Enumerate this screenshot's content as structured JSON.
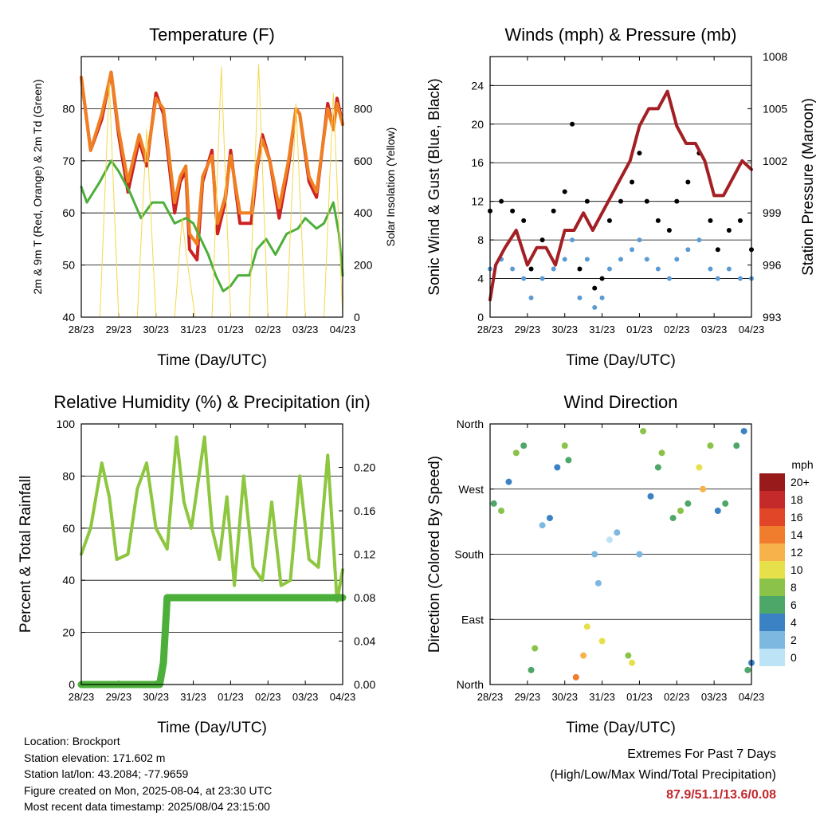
{
  "footer": {
    "location": "Location: Brockport",
    "elevation": "Station elevation: 171.602 m",
    "latlon": "Station lat/lon: 43.2084; -77.9659",
    "created": "Figure created on Mon, 2025-08-04, at 23:30 UTC",
    "recent": "Most recent data timestamp: 2025/08/04 23:15:00",
    "extremes_title": "Extremes For Past 7 Days",
    "extremes_sub": "(High/Low/Max Wind/Total Precipitation)",
    "extremes_values": "87.9/51.1/13.6/0.08",
    "extremes_color": "#c0272d"
  },
  "chart_data": [
    {
      "type": "line",
      "title": "Temperature (F)",
      "xlabel": "Time (Day/UTC)",
      "ylabel": "2m & 9m T (Red, Orange) & 2m Td (Green)",
      "y2label": "Solar Insolation (Yellow)",
      "x_ticks": [
        "28/23",
        "29/23",
        "30/23",
        "31/23",
        "01/23",
        "02/23",
        "03/23",
        "04/23"
      ],
      "xlim": [
        0,
        7
      ],
      "ylim": [
        40,
        90
      ],
      "y_ticks": [
        40,
        50,
        60,
        70,
        80
      ],
      "y2lim": [
        0,
        1000
      ],
      "y2_ticks": [
        0,
        200,
        400,
        600,
        800
      ],
      "grid": true,
      "series": [
        {
          "name": "2m T",
          "color": "#cc2222",
          "x": [
            0,
            0.25,
            0.55,
            0.8,
            1.0,
            1.25,
            1.55,
            1.75,
            2.0,
            2.2,
            2.5,
            2.65,
            2.8,
            2.9,
            3.1,
            3.25,
            3.5,
            3.65,
            3.85,
            4.0,
            4.25,
            4.55,
            4.7,
            4.85,
            5.05,
            5.3,
            5.55,
            5.75,
            5.85,
            6.1,
            6.3,
            6.6,
            6.75,
            6.85,
            7.0
          ],
          "y": [
            86,
            72,
            78,
            87,
            75,
            64,
            74,
            69,
            83,
            79,
            60,
            66,
            68,
            53,
            51,
            66,
            72,
            56,
            62,
            72,
            58,
            58,
            68,
            75,
            70,
            59,
            69,
            80,
            79,
            66,
            63,
            81,
            76,
            82,
            77
          ]
        },
        {
          "name": "9m T",
          "color": "#f07f22",
          "x": [
            0,
            0.25,
            0.55,
            0.8,
            1.0,
            1.25,
            1.55,
            1.75,
            2.0,
            2.2,
            2.5,
            2.65,
            2.8,
            2.9,
            3.1,
            3.25,
            3.5,
            3.65,
            3.85,
            4.0,
            4.25,
            4.55,
            4.7,
            4.85,
            5.05,
            5.3,
            5.55,
            5.75,
            5.85,
            6.1,
            6.3,
            6.6,
            6.75,
            6.85,
            7.0
          ],
          "y": [
            86,
            72,
            79,
            87,
            76,
            66,
            75,
            70,
            82,
            80,
            62,
            67,
            69,
            56,
            54,
            67,
            71,
            58,
            63,
            71,
            60,
            60,
            69,
            74,
            70,
            61,
            70,
            80,
            79,
            67,
            64,
            80,
            76,
            81,
            77
          ]
        },
        {
          "name": "2m Td",
          "color": "#4caf3a",
          "x": [
            0,
            0.15,
            0.5,
            0.8,
            1.0,
            1.3,
            1.6,
            1.9,
            2.2,
            2.5,
            2.8,
            3.0,
            3.2,
            3.4,
            3.6,
            3.8,
            4.0,
            4.2,
            4.5,
            4.7,
            4.95,
            5.2,
            5.5,
            5.8,
            6.0,
            6.3,
            6.5,
            6.75,
            6.9,
            7.0
          ],
          "y": [
            65,
            62,
            66,
            70,
            68,
            64,
            59,
            62,
            62,
            58,
            59,
            58,
            55,
            52,
            48,
            45,
            46,
            48,
            48,
            53,
            55,
            52,
            56,
            57,
            59,
            57,
            58,
            62,
            56,
            48
          ]
        },
        {
          "name": "Solar",
          "color": "#f5d84a",
          "axis": "y2",
          "x": [
            0,
            0.5,
            0.75,
            1.0,
            1.5,
            1.75,
            2.0,
            2.5,
            2.7,
            2.85,
            3.05,
            3.5,
            3.75,
            4.0,
            4.5,
            4.75,
            5.0,
            5.5,
            5.75,
            6.0,
            6.5,
            6.75,
            7.0
          ],
          "y": [
            0,
            0,
            900,
            0,
            0,
            720,
            0,
            0,
            380,
            200,
            0,
            0,
            960,
            0,
            0,
            970,
            0,
            0,
            820,
            0,
            0,
            860,
            0
          ]
        }
      ]
    },
    {
      "type": "scatter",
      "title": "Winds (mph) & Pressure (mb)",
      "xlabel": "Time (Day/UTC)",
      "ylabel": "Sonic Wind & Gust (Blue, Black)",
      "y2label": "Station Pressure (Maroon)",
      "x_ticks": [
        "28/23",
        "29/23",
        "30/23",
        "31/23",
        "01/23",
        "02/23",
        "03/23",
        "04/23"
      ],
      "xlim": [
        0,
        7
      ],
      "ylim": [
        0,
        27
      ],
      "y_ticks": [
        0,
        4,
        8,
        12,
        16,
        20,
        24
      ],
      "y2lim": [
        993,
        1008
      ],
      "y2_ticks": [
        993,
        996,
        999,
        1002,
        1005,
        1008
      ],
      "grid": true,
      "series": [
        {
          "name": "Sonic Wind",
          "color": "#5b9bd5",
          "x": [
            0,
            0.3,
            0.6,
            0.9,
            1.1,
            1.4,
            1.7,
            2.0,
            2.2,
            2.4,
            2.6,
            2.8,
            3.0,
            3.2,
            3.5,
            3.8,
            4.0,
            4.2,
            4.5,
            4.8,
            5.0,
            5.3,
            5.6,
            5.9,
            6.1,
            6.4,
            6.7,
            7.0
          ],
          "y": [
            5,
            6,
            5,
            4,
            2,
            4,
            5,
            6,
            8,
            2,
            6,
            1,
            2,
            5,
            6,
            7,
            8,
            6,
            5,
            4,
            6,
            7,
            8,
            5,
            4,
            5,
            4,
            4
          ]
        },
        {
          "name": "Gust",
          "color": "#000000",
          "x": [
            0,
            0.3,
            0.6,
            0.9,
            1.1,
            1.4,
            1.7,
            2.0,
            2.2,
            2.4,
            2.6,
            2.8,
            3.0,
            3.2,
            3.5,
            3.8,
            4.0,
            4.2,
            4.5,
            4.8,
            5.0,
            5.3,
            5.6,
            5.9,
            6.1,
            6.4,
            6.7,
            7.0
          ],
          "y": [
            11,
            12,
            11,
            10,
            5,
            8,
            11,
            13,
            20,
            5,
            12,
            3,
            4,
            10,
            12,
            14,
            17,
            12,
            10,
            9,
            12,
            14,
            17,
            10,
            7,
            9,
            10,
            7
          ]
        },
        {
          "name": "Pressure",
          "color": "#a31f24",
          "axis": "y2",
          "x": [
            0,
            0.15,
            0.4,
            0.7,
            1.0,
            1.25,
            1.5,
            1.75,
            2.0,
            2.25,
            2.5,
            2.75,
            3.0,
            3.25,
            3.5,
            3.75,
            4.0,
            4.25,
            4.5,
            4.75,
            5.0,
            5.25,
            5.5,
            5.75,
            6.0,
            6.25,
            6.5,
            6.75,
            7.0
          ],
          "y": [
            994,
            996,
            997,
            998,
            996,
            997,
            997,
            996,
            998,
            998,
            999,
            998,
            999,
            1000,
            1001,
            1002,
            1004,
            1005,
            1005,
            1006,
            1004,
            1003,
            1003,
            1002,
            1000,
            1000,
            1001,
            1002,
            1001.5
          ]
        }
      ]
    },
    {
      "type": "line",
      "title": "Relative Humidity (%) & Precipitation (in)",
      "xlabel": "Time (Day/UTC)",
      "ylabel": "Percent & Total Rainfall",
      "x_ticks": [
        "28/23",
        "29/23",
        "30/23",
        "31/23",
        "01/23",
        "02/23",
        "03/23",
        "04/23"
      ],
      "xlim": [
        0,
        7
      ],
      "ylim": [
        0,
        100
      ],
      "y_ticks": [
        0,
        20,
        40,
        60,
        80,
        100
      ],
      "y2lim": [
        0,
        0.24
      ],
      "y2_ticks": [
        "0.00",
        "0.04",
        "0.08",
        "0.12",
        "0.16",
        "0.20"
      ],
      "grid": true,
      "series": [
        {
          "name": "RH",
          "color": "#8dc63f",
          "x": [
            0,
            0.25,
            0.55,
            0.75,
            0.95,
            1.25,
            1.5,
            1.75,
            2.0,
            2.3,
            2.55,
            2.75,
            2.95,
            3.3,
            3.5,
            3.7,
            3.9,
            4.1,
            4.35,
            4.6,
            4.85,
            5.1,
            5.35,
            5.6,
            5.85,
            6.1,
            6.35,
            6.6,
            6.85,
            7.0
          ],
          "y": [
            50,
            60,
            85,
            72,
            48,
            50,
            75,
            85,
            60,
            52,
            95,
            70,
            60,
            95,
            60,
            48,
            72,
            38,
            80,
            45,
            40,
            70,
            38,
            40,
            80,
            48,
            45,
            88,
            32,
            44
          ]
        },
        {
          "name": "Precip",
          "color": "#4caf3a",
          "axis": "y2",
          "x": [
            0,
            1.8,
            2.1,
            2.2,
            2.25,
            2.3,
            2.4,
            7.0
          ],
          "y": [
            0,
            0,
            0,
            0.02,
            0.05,
            0.08,
            0.08,
            0.08
          ]
        }
      ]
    },
    {
      "type": "scatter",
      "title": "Wind Direction",
      "xlabel": "Time (Day/UTC)",
      "ylabel": "Direction (Colored By Speed)",
      "x_ticks": [
        "28/23",
        "29/23",
        "30/23",
        "31/23",
        "01/23",
        "02/23",
        "03/23",
        "04/23"
      ],
      "xlim": [
        0,
        7
      ],
      "ylim": [
        0,
        360
      ],
      "y_ticks": [
        "North",
        "East",
        "South",
        "West",
        "North"
      ],
      "legend_title": "mph",
      "legend": [
        "0",
        "2",
        "4",
        "6",
        "8",
        "10",
        "12",
        "14",
        "16",
        "18",
        "20+"
      ],
      "legend_colors": [
        "#bde3f6",
        "#7db8e0",
        "#3b82c4",
        "#4da768",
        "#8bc34a",
        "#e6e04a",
        "#f7b24b",
        "#f07c2e",
        "#e04627",
        "#c42a2a",
        "#981a1a"
      ],
      "points": [
        {
          "x": 0.1,
          "y": 250,
          "s": 6
        },
        {
          "x": 0.3,
          "y": 240,
          "s": 8
        },
        {
          "x": 0.5,
          "y": 280,
          "s": 4
        },
        {
          "x": 0.7,
          "y": 320,
          "s": 8
        },
        {
          "x": 0.9,
          "y": 330,
          "s": 6
        },
        {
          "x": 1.1,
          "y": 20,
          "s": 6
        },
        {
          "x": 1.2,
          "y": 50,
          "s": 8
        },
        {
          "x": 1.4,
          "y": 220,
          "s": 2
        },
        {
          "x": 1.6,
          "y": 230,
          "s": 4
        },
        {
          "x": 1.8,
          "y": 300,
          "s": 4
        },
        {
          "x": 2.0,
          "y": 330,
          "s": 8
        },
        {
          "x": 2.1,
          "y": 310,
          "s": 6
        },
        {
          "x": 2.3,
          "y": 10,
          "s": 14
        },
        {
          "x": 2.5,
          "y": 40,
          "s": 12
        },
        {
          "x": 2.6,
          "y": 80,
          "s": 10
        },
        {
          "x": 2.8,
          "y": 180,
          "s": 2
        },
        {
          "x": 2.9,
          "y": 140,
          "s": 2
        },
        {
          "x": 3.0,
          "y": 60,
          "s": 10
        },
        {
          "x": 3.2,
          "y": 200,
          "s": 0
        },
        {
          "x": 3.4,
          "y": 210,
          "s": 2
        },
        {
          "x": 3.7,
          "y": 40,
          "s": 8
        },
        {
          "x": 3.8,
          "y": 30,
          "s": 10
        },
        {
          "x": 4.0,
          "y": 180,
          "s": 2
        },
        {
          "x": 4.1,
          "y": 350,
          "s": 8
        },
        {
          "x": 4.3,
          "y": 260,
          "s": 4
        },
        {
          "x": 4.5,
          "y": 300,
          "s": 6
        },
        {
          "x": 4.6,
          "y": 320,
          "s": 8
        },
        {
          "x": 4.9,
          "y": 230,
          "s": 6
        },
        {
          "x": 5.1,
          "y": 240,
          "s": 8
        },
        {
          "x": 5.3,
          "y": 250,
          "s": 6
        },
        {
          "x": 5.6,
          "y": 300,
          "s": 10
        },
        {
          "x": 5.7,
          "y": 270,
          "s": 12
        },
        {
          "x": 5.9,
          "y": 330,
          "s": 8
        },
        {
          "x": 6.1,
          "y": 240,
          "s": 4
        },
        {
          "x": 6.3,
          "y": 250,
          "s": 6
        },
        {
          "x": 6.6,
          "y": 330,
          "s": 6
        },
        {
          "x": 6.8,
          "y": 350,
          "s": 4
        },
        {
          "x": 6.9,
          "y": 20,
          "s": 6
        },
        {
          "x": 7.0,
          "y": 30,
          "s": 4
        }
      ]
    }
  ]
}
